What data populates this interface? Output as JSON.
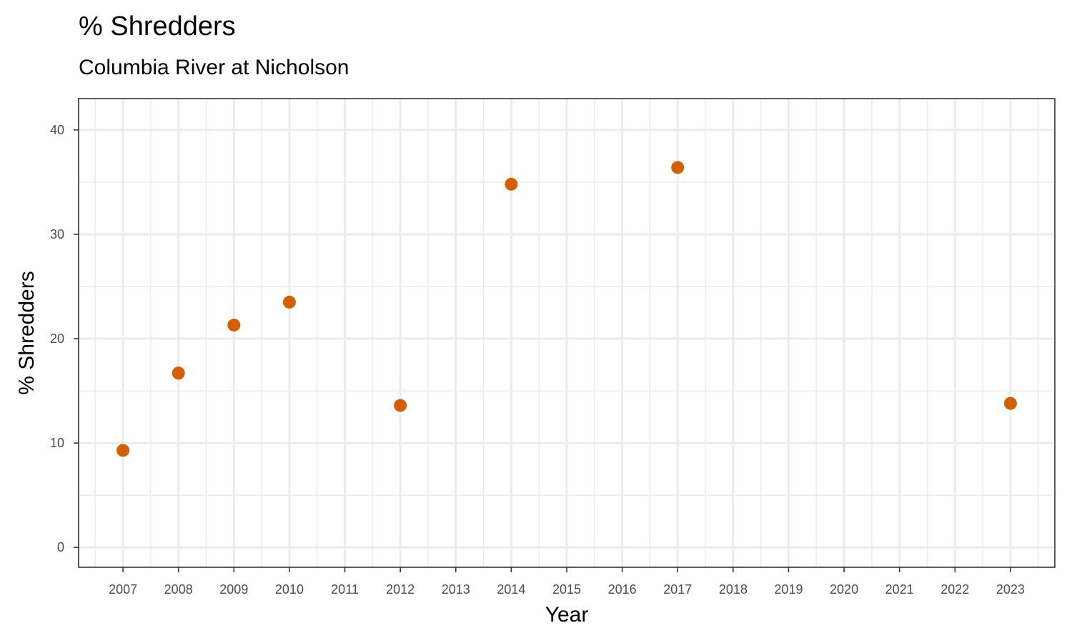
{
  "title": "% Shredders",
  "subtitle": "Columbia River at Nicholson",
  "chart_data": {
    "type": "scatter",
    "title": "% Shredders",
    "subtitle": "Columbia River at Nicholson",
    "xlabel": "Year",
    "ylabel": "% Shredders",
    "xlim": [
      2006.2,
      2023.8
    ],
    "ylim": [
      -1.9,
      43.0
    ],
    "x_ticks": [
      2007,
      2008,
      2009,
      2010,
      2011,
      2012,
      2013,
      2014,
      2015,
      2016,
      2017,
      2018,
      2019,
      2020,
      2021,
      2022,
      2023
    ],
    "y_ticks": [
      0,
      10,
      20,
      30,
      40
    ],
    "grid": true,
    "legend": "none",
    "point_color": "#D55E00",
    "series": [
      {
        "x": [
          2007,
          2008,
          2009,
          2010,
          2012,
          2014,
          2017,
          2023
        ],
        "y": [
          9.3,
          16.7,
          21.3,
          23.5,
          13.6,
          34.8,
          36.4,
          13.8
        ]
      }
    ]
  }
}
